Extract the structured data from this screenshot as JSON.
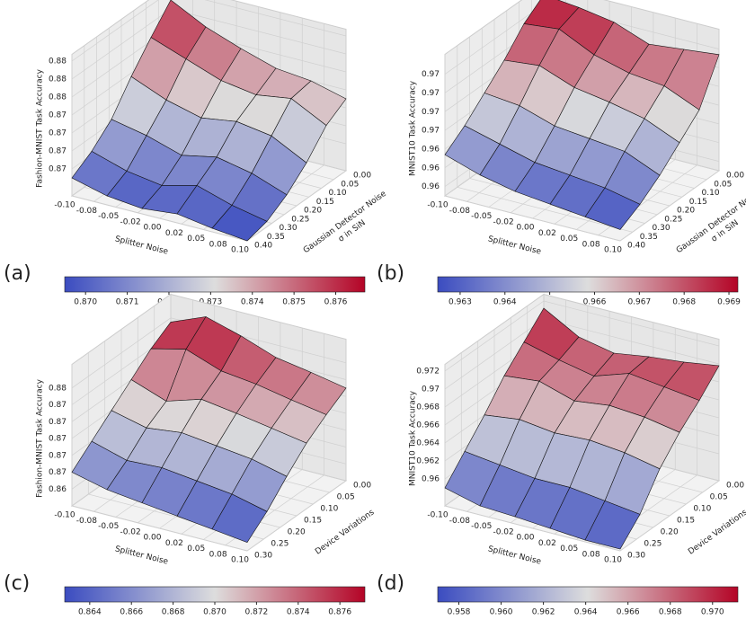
{
  "chart_data": [
    {
      "type": "surface",
      "panel_label": "(a)",
      "zlabel": "Fashion-MNIST Task Accuracy",
      "xlabel": "Splitter Noise",
      "ylabel": [
        "Gaussian Detector Noise",
        "σ in SiN"
      ],
      "x": [
        -0.1,
        -0.06,
        -0.02,
        0.02,
        0.06,
        0.1
      ],
      "y": [
        0,
        0.08,
        0.16,
        0.24,
        0.32,
        0.4
      ],
      "z": [
        [
          0.8765,
          0.8755,
          0.8748,
          0.8742,
          0.874,
          0.8735
        ],
        [
          0.8752,
          0.8745,
          0.8738,
          0.8735,
          0.8738,
          0.8728
        ],
        [
          0.8738,
          0.873,
          0.8725,
          0.8728,
          0.8725,
          0.8715
        ],
        [
          0.8722,
          0.8718,
          0.8712,
          0.8716,
          0.8712,
          0.8705
        ],
        [
          0.8712,
          0.8706,
          0.8703,
          0.8708,
          0.8702,
          0.8698
        ],
        [
          0.8705,
          0.87,
          0.8698,
          0.87,
          0.8697,
          0.8695
        ]
      ],
      "xlim": [
        -0.1,
        0.1
      ],
      "ylim": [
        0,
        0.4
      ],
      "zlim": [
        0.8695,
        0.877
      ],
      "xticks": [
        {
          "value": -0.1,
          "label": "-0.10"
        },
        {
          "value": -0.075,
          "label": "-0.08"
        },
        {
          "value": -0.05,
          "label": "-0.05"
        },
        {
          "value": -0.025,
          "label": "-0.02"
        },
        {
          "value": 0,
          "label": "0.00"
        },
        {
          "value": 0.025,
          "label": "0.02"
        },
        0.05,
        {
          "value": 0.075,
          "label": "0.08"
        },
        {
          "value": 0.1,
          "label": "0.10"
        }
      ],
      "yticks": [
        {
          "value": 0,
          "label": "0.00"
        },
        0.05,
        {
          "value": 0.1,
          "label": "0.10"
        },
        0.15,
        {
          "value": 0.2,
          "label": "0.20"
        },
        0.25,
        {
          "value": 0.3,
          "label": "0.30"
        },
        0.35,
        {
          "value": 0.4,
          "label": "0.40"
        }
      ],
      "zticks": [
        {
          "value": 0.871,
          "label": "0.87"
        },
        {
          "value": 0.872,
          "label": "0.87"
        },
        {
          "value": 0.873,
          "label": "0.87"
        },
        {
          "value": 0.874,
          "label": "0.87"
        },
        {
          "value": 0.875,
          "label": "0.88"
        },
        {
          "value": 0.876,
          "label": "0.88"
        },
        {
          "value": 0.877,
          "label": "0.88"
        }
      ],
      "clim": [
        0.8695,
        0.8767
      ],
      "cticks": [
        {
          "value": 0.87,
          "label": "0.870"
        },
        0.871,
        0.872,
        0.873,
        0.874,
        0.875,
        0.876
      ],
      "colormap": [
        "#3b4cc0",
        "#dddddd",
        "#b40426"
      ]
    },
    {
      "type": "surface",
      "panel_label": "(b)",
      "zlabel": "MNIST10 Task Accuracy",
      "xlabel": "Splitter Noise",
      "ylabel": [
        "Gaussian Detector Noise",
        "σ in SiN"
      ],
      "x": [
        -0.1,
        -0.06,
        -0.02,
        0.02,
        0.06,
        0.1
      ],
      "y": [
        0,
        0.08,
        0.16,
        0.24,
        0.32,
        0.4
      ],
      "z": [
        [
          0.969,
          0.9688,
          0.9685,
          0.9678,
          0.968,
          0.9682
        ],
        [
          0.9682,
          0.9684,
          0.9675,
          0.967,
          0.9668,
          0.966
        ],
        [
          0.967,
          0.9672,
          0.9665,
          0.9662,
          0.9658,
          0.965
        ],
        [
          0.966,
          0.9658,
          0.9652,
          0.965,
          0.9648,
          0.964
        ],
        [
          0.965,
          0.9645,
          0.964,
          0.9638,
          0.9636,
          0.9632
        ],
        [
          0.9642,
          0.9636,
          0.9632,
          0.963,
          0.9628,
          0.9626
        ]
      ],
      "xlim": [
        -0.1,
        0.1
      ],
      "ylim": [
        0,
        0.4
      ],
      "zlim": [
        0.962,
        0.9692
      ],
      "xticks": [
        {
          "value": -0.1,
          "label": "-0.10"
        },
        {
          "value": -0.075,
          "label": "-0.08"
        },
        {
          "value": -0.05,
          "label": "-0.05"
        },
        {
          "value": -0.025,
          "label": "-0.02"
        },
        {
          "value": 0,
          "label": "0.00"
        },
        {
          "value": 0.025,
          "label": "0.02"
        },
        0.05,
        {
          "value": 0.075,
          "label": "0.08"
        },
        {
          "value": 0.1,
          "label": "0.10"
        }
      ],
      "yticks": [
        {
          "value": 0,
          "label": "0.00"
        },
        0.05,
        {
          "value": 0.1,
          "label": "0.10"
        },
        0.15,
        {
          "value": 0.2,
          "label": "0.20"
        },
        0.25,
        {
          "value": 0.3,
          "label": "0.30"
        },
        0.35,
        {
          "value": 0.4,
          "label": "0.40"
        }
      ],
      "zticks": [
        {
          "value": 0.9625,
          "label": "0.96"
        },
        {
          "value": 0.9635,
          "label": "0.96"
        },
        {
          "value": 0.9645,
          "label": "0.96"
        },
        {
          "value": 0.9655,
          "label": "0.97"
        },
        {
          "value": 0.9665,
          "label": "0.97"
        },
        {
          "value": 0.9675,
          "label": "0.97"
        },
        {
          "value": 0.9685,
          "label": "0.97"
        }
      ],
      "clim": [
        0.9625,
        0.9692
      ],
      "cticks": [
        0.963,
        0.964,
        0.965,
        0.966,
        0.967,
        0.968,
        0.969
      ],
      "colormap": [
        "#3b4cc0",
        "#dddddd",
        "#b40426"
      ]
    },
    {
      "type": "surface",
      "panel_label": "(c)",
      "zlabel": "Fashion-MNIST Task Accuracy",
      "xlabel": "Splitter Noise",
      "ylabel": [
        "Device Variations"
      ],
      "x": [
        -0.1,
        -0.06,
        -0.02,
        0.02,
        0.06,
        0.1
      ],
      "y": [
        0,
        0.06,
        0.12,
        0.18,
        0.24,
        0.3
      ],
      "z": [
        [
          0.8755,
          0.8772,
          0.876,
          0.8745,
          0.8738,
          0.873
        ],
        [
          0.874,
          0.875,
          0.8735,
          0.873,
          0.8722,
          0.8715
        ],
        [
          0.872,
          0.8705,
          0.8718,
          0.8712,
          0.8705,
          0.8698
        ],
        [
          0.87,
          0.869,
          0.8695,
          0.869,
          0.8685,
          0.8675
        ],
        [
          0.868,
          0.8668,
          0.867,
          0.8665,
          0.866,
          0.865
        ],
        [
          0.866,
          0.865,
          0.8645,
          0.864,
          0.8635,
          0.863
        ]
      ],
      "xlim": [
        -0.1,
        0.1
      ],
      "ylim": [
        0,
        0.3
      ],
      "zlim": [
        0.862,
        0.878
      ],
      "xticks": [
        {
          "value": -0.1,
          "label": "-0.10"
        },
        {
          "value": -0.075,
          "label": "-0.08"
        },
        {
          "value": -0.05,
          "label": "-0.05"
        },
        {
          "value": -0.025,
          "label": "-0.02"
        },
        {
          "value": 0,
          "label": "0.00"
        },
        {
          "value": 0.025,
          "label": "0.02"
        },
        0.05,
        {
          "value": 0.075,
          "label": "0.08"
        },
        {
          "value": 0.1,
          "label": "0.10"
        }
      ],
      "yticks": [
        {
          "value": 0,
          "label": "0.00"
        },
        0.05,
        {
          "value": 0.1,
          "label": "0.10"
        },
        0.15,
        {
          "value": 0.2,
          "label": "0.20"
        },
        0.25,
        {
          "value": 0.3,
          "label": "0.30"
        }
      ],
      "zticks": [
        {
          "value": 0.864,
          "label": "0.86"
        },
        {
          "value": 0.866,
          "label": "0.87"
        },
        {
          "value": 0.868,
          "label": "0.87"
        },
        {
          "value": 0.87,
          "label": "0.87"
        },
        {
          "value": 0.872,
          "label": "0.87"
        },
        {
          "value": 0.874,
          "label": "0.87"
        },
        {
          "value": 0.876,
          "label": "0.88"
        }
      ],
      "clim": [
        0.8628,
        0.8772
      ],
      "cticks": [
        0.864,
        0.866,
        0.868,
        {
          "value": 0.87,
          "label": "0.870"
        },
        0.872,
        0.874,
        0.876
      ],
      "colormap": [
        "#3b4cc0",
        "#dddddd",
        "#b40426"
      ]
    },
    {
      "type": "surface",
      "panel_label": "(d)",
      "zlabel": "MNIST10 Task Accuracy",
      "xlabel": "Splitter Noise",
      "ylabel": [
        "Device Variations"
      ],
      "x": [
        -0.1,
        -0.06,
        -0.02,
        0.02,
        0.06,
        0.1
      ],
      "y": [
        0,
        0.06,
        0.12,
        0.18,
        0.24,
        0.3
      ],
      "z": [
        [
          0.9712,
          0.969,
          0.9682,
          0.9688,
          0.9692,
          0.9698
        ],
        [
          0.969,
          0.968,
          0.9672,
          0.9685,
          0.968,
          0.9675
        ],
        [
          0.9668,
          0.9672,
          0.966,
          0.9665,
          0.9662,
          0.9655
        ],
        [
          0.964,
          0.9645,
          0.964,
          0.9642,
          0.9638,
          0.963
        ],
        [
          0.9615,
          0.961,
          0.9605,
          0.9605,
          0.96,
          0.9595
        ],
        [
          0.959,
          0.958,
          0.9578,
          0.9575,
          0.9572,
          0.9572
        ]
      ],
      "xlim": [
        -0.1,
        0.1
      ],
      "ylim": [
        0,
        0.3
      ],
      "zlim": [
        0.957,
        0.972
      ],
      "xticks": [
        {
          "value": -0.1,
          "label": "-0.10"
        },
        {
          "value": -0.075,
          "label": "-0.08"
        },
        {
          "value": -0.05,
          "label": "-0.05"
        },
        {
          "value": -0.025,
          "label": "-0.02"
        },
        {
          "value": 0,
          "label": "0.00"
        },
        {
          "value": 0.025,
          "label": "0.02"
        },
        0.05,
        {
          "value": 0.075,
          "label": "0.08"
        },
        {
          "value": 0.1,
          "label": "0.10"
        }
      ],
      "yticks": [
        {
          "value": 0,
          "label": "0.00"
        },
        0.05,
        {
          "value": 0.1,
          "label": "0.10"
        },
        0.15,
        {
          "value": 0.2,
          "label": "0.20"
        },
        0.25,
        {
          "value": 0.3,
          "label": "0.30"
        }
      ],
      "zticks": [
        {
          "value": 0.96,
          "label": "0.96"
        },
        0.962,
        0.964,
        0.966,
        0.968,
        {
          "value": 0.97,
          "label": "0.97"
        },
        0.972
      ],
      "clim": [
        0.957,
        0.9712
      ],
      "cticks": [
        0.958,
        {
          "value": 0.96,
          "label": "0.960"
        },
        0.962,
        0.964,
        0.966,
        0.968,
        {
          "value": 0.97,
          "label": "0.970"
        }
      ],
      "colormap": [
        "#3b4cc0",
        "#dddddd",
        "#b40426"
      ]
    }
  ]
}
